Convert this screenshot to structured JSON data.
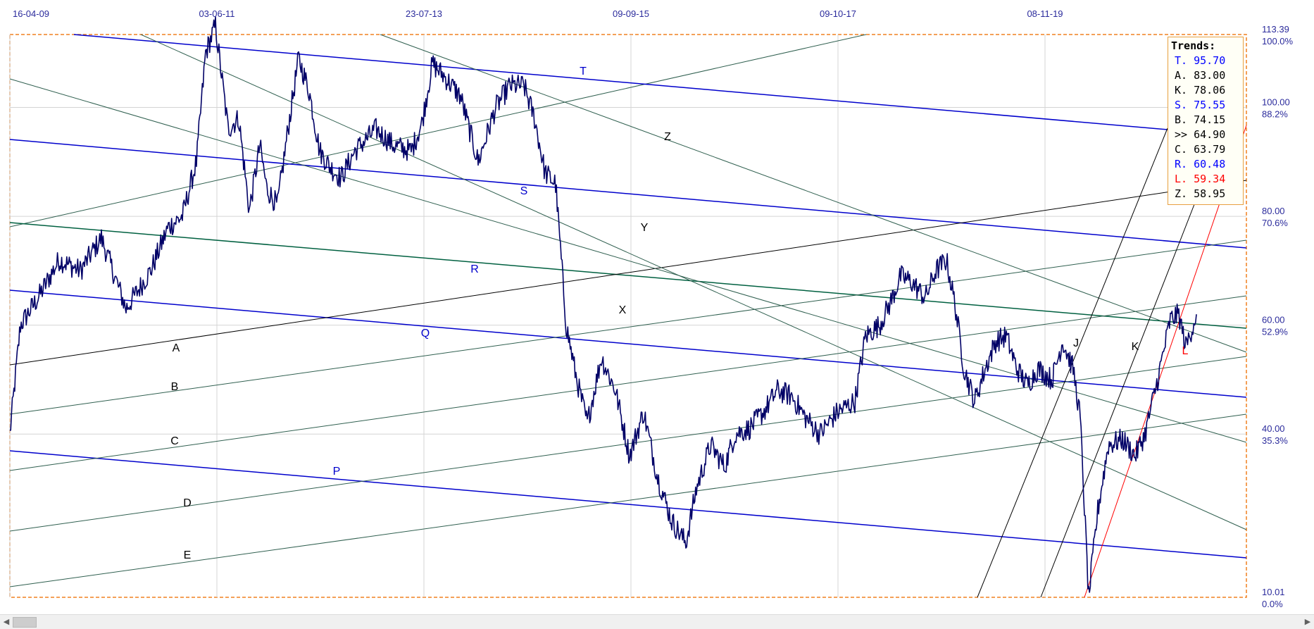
{
  "chart_data": {
    "type": "line",
    "title": "",
    "x_ticks": [
      "16-04-09",
      "03-06-11",
      "23-07-13",
      "09-09-15",
      "09-10-17",
      "08-11-19"
    ],
    "y_ticks_value": [
      "113.39",
      "100.00",
      "80.00",
      "60.00",
      "40.00",
      "10.01"
    ],
    "y_ticks_pct": [
      "100.0%",
      "88.2%",
      "70.6%",
      "52.9%",
      "35.3%",
      "0.0%"
    ],
    "ylim": [
      10.01,
      113.39
    ],
    "grid": true,
    "series": [
      {
        "values": [
          [
            0,
            40
          ],
          [
            15,
            60
          ],
          [
            40,
            65
          ],
          [
            70,
            72
          ],
          [
            100,
            70
          ],
          [
            130,
            76
          ],
          [
            165,
            63
          ],
          [
            200,
            70
          ],
          [
            225,
            78
          ],
          [
            245,
            80
          ],
          [
            265,
            90
          ],
          [
            278,
            110
          ],
          [
            292,
            115
          ],
          [
            310,
            96
          ],
          [
            325,
            98
          ],
          [
            340,
            81
          ],
          [
            355,
            93
          ],
          [
            365,
            85
          ],
          [
            380,
            82
          ],
          [
            395,
            96
          ],
          [
            410,
            109
          ],
          [
            425,
            103
          ],
          [
            440,
            92
          ],
          [
            455,
            89
          ],
          [
            470,
            87
          ],
          [
            490,
            92
          ],
          [
            520,
            96
          ],
          [
            545,
            93
          ],
          [
            570,
            92
          ],
          [
            585,
            97
          ],
          [
            600,
            108
          ],
          [
            615,
            106
          ],
          [
            640,
            102
          ],
          [
            665,
            90
          ],
          [
            690,
            100
          ],
          [
            710,
            104
          ],
          [
            730,
            104
          ],
          [
            745,
            98
          ],
          [
            760,
            88
          ],
          [
            775,
            86
          ],
          [
            790,
            60
          ],
          [
            805,
            50
          ],
          [
            820,
            42
          ],
          [
            840,
            54
          ],
          [
            860,
            48
          ],
          [
            880,
            36
          ],
          [
            900,
            44
          ],
          [
            920,
            32
          ],
          [
            940,
            24
          ],
          [
            960,
            20
          ],
          [
            975,
            30
          ],
          [
            995,
            38
          ],
          [
            1015,
            34
          ],
          [
            1030,
            40
          ],
          [
            1050,
            41
          ],
          [
            1070,
            44
          ],
          [
            1090,
            48
          ],
          [
            1110,
            47
          ],
          [
            1130,
            43
          ],
          [
            1150,
            40
          ],
          [
            1175,
            44
          ],
          [
            1200,
            46
          ],
          [
            1215,
            58
          ],
          [
            1235,
            60
          ],
          [
            1250,
            64
          ],
          [
            1265,
            69
          ],
          [
            1280,
            68
          ],
          [
            1300,
            65
          ],
          [
            1315,
            70
          ],
          [
            1330,
            72
          ],
          [
            1342,
            64
          ],
          [
            1355,
            52
          ],
          [
            1370,
            46
          ],
          [
            1385,
            52
          ],
          [
            1400,
            57
          ],
          [
            1415,
            58
          ],
          [
            1430,
            52
          ],
          [
            1445,
            49
          ],
          [
            1460,
            52
          ],
          [
            1480,
            50
          ],
          [
            1495,
            57
          ],
          [
            1510,
            52
          ],
          [
            1520,
            43
          ],
          [
            1532,
            10
          ],
          [
            1545,
            26
          ],
          [
            1560,
            38
          ],
          [
            1580,
            39
          ],
          [
            1598,
            36
          ],
          [
            1612,
            40
          ],
          [
            1630,
            50
          ],
          [
            1648,
            61
          ],
          [
            1660,
            62
          ],
          [
            1670,
            56
          ],
          [
            1680,
            60
          ],
          [
            1685,
            62
          ]
        ]
      }
    ],
    "trendlines": [
      {
        "label": "T",
        "color": "#0000cc",
        "ids": "t"
      },
      {
        "label": "S",
        "color": "#0000cc",
        "ids": "s"
      },
      {
        "label": "R",
        "color": "#0000cc",
        "ids": "r"
      },
      {
        "label": "Q",
        "color": "#0000cc",
        "ids": "q"
      },
      {
        "label": "P",
        "color": "#0000cc",
        "ids": "p"
      },
      {
        "label": "A",
        "color": "#000000",
        "ids": "a"
      },
      {
        "label": "B",
        "color": "#000000",
        "ids": "b"
      },
      {
        "label": "C",
        "color": "#000000",
        "ids": "c"
      },
      {
        "label": "D",
        "color": "#000000",
        "ids": "d"
      },
      {
        "label": "E",
        "color": "#000000",
        "ids": "e"
      },
      {
        "label": "X",
        "color": "#000000",
        "ids": "x"
      },
      {
        "label": "Y",
        "color": "#000000",
        "ids": "y"
      },
      {
        "label": "Z",
        "color": "#000000",
        "ids": "z"
      },
      {
        "label": "J",
        "color": "#000000",
        "ids": "j"
      },
      {
        "label": "K",
        "color": "#000000",
        "ids": "k"
      },
      {
        "label": "L",
        "color": "#ff0000",
        "ids": "l"
      }
    ]
  },
  "legend": {
    "title": "Trends:",
    "rows": [
      {
        "text": "T. 95.70",
        "color": "#0000ff"
      },
      {
        "text": "A. 83.00",
        "color": "#000000"
      },
      {
        "text": "K. 78.06",
        "color": "#000000"
      },
      {
        "text": "S. 75.55",
        "color": "#0000ff"
      },
      {
        "text": "B. 74.15",
        "color": "#000000"
      },
      {
        "text": ">> 64.90",
        "color": "#000000"
      },
      {
        "text": "C. 63.79",
        "color": "#000000"
      },
      {
        "text": "R. 60.48",
        "color": "#0000ff"
      },
      {
        "text": "L. 59.34",
        "color": "#ff0000"
      },
      {
        "text": "Z. 58.95",
        "color": "#000000"
      }
    ]
  },
  "scrollbar": {
    "left_arrow": "◀",
    "right_arrow": "▶"
  }
}
